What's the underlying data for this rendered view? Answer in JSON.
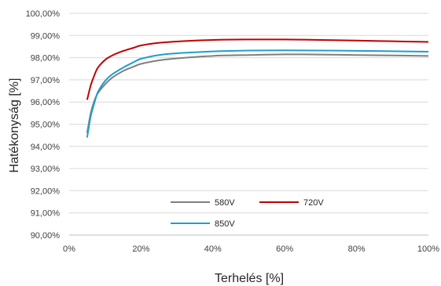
{
  "chart_data": {
    "type": "line",
    "title": "",
    "xlabel": "Terhelés [%]",
    "ylabel": "Hatékonyság [%]",
    "xlim": [
      0,
      100
    ],
    "ylim": [
      90,
      100
    ],
    "x_ticks": [
      "0%",
      "20%",
      "40%",
      "60%",
      "80%",
      "100%"
    ],
    "y_ticks": [
      "90,00%",
      "91,00%",
      "92,00%",
      "93,00%",
      "94,00%",
      "95,00%",
      "96,00%",
      "97,00%",
      "98,00%",
      "99,00%",
      "100,00%"
    ],
    "grid": "horizontal",
    "legend_position": "bottom-center",
    "series": [
      {
        "name": "580V",
        "color": "#7f7f7f",
        "points": [
          [
            5,
            94.6
          ],
          [
            6,
            95.5
          ],
          [
            7,
            96.05
          ],
          [
            8,
            96.4
          ],
          [
            10,
            96.8
          ],
          [
            12,
            97.1
          ],
          [
            15,
            97.4
          ],
          [
            18,
            97.6
          ],
          [
            20,
            97.72
          ],
          [
            25,
            97.88
          ],
          [
            30,
            97.97
          ],
          [
            40,
            98.08
          ],
          [
            50,
            98.12
          ],
          [
            60,
            98.15
          ],
          [
            70,
            98.14
          ],
          [
            80,
            98.12
          ],
          [
            90,
            98.1
          ],
          [
            100,
            98.08
          ]
        ]
      },
      {
        "name": "720V",
        "color": "#c00000",
        "points": [
          [
            5,
            96.1
          ],
          [
            6,
            96.75
          ],
          [
            7,
            97.2
          ],
          [
            8,
            97.55
          ],
          [
            10,
            97.9
          ],
          [
            12,
            98.1
          ],
          [
            15,
            98.3
          ],
          [
            18,
            98.45
          ],
          [
            20,
            98.55
          ],
          [
            25,
            98.67
          ],
          [
            30,
            98.73
          ],
          [
            40,
            98.8
          ],
          [
            50,
            98.82
          ],
          [
            60,
            98.82
          ],
          [
            70,
            98.8
          ],
          [
            80,
            98.77
          ],
          [
            90,
            98.74
          ],
          [
            100,
            98.71
          ]
        ]
      },
      {
        "name": "850V",
        "color": "#1f9ec9",
        "points": [
          [
            5,
            94.4
          ],
          [
            6,
            95.35
          ],
          [
            7,
            95.95
          ],
          [
            8,
            96.45
          ],
          [
            10,
            96.95
          ],
          [
            12,
            97.25
          ],
          [
            15,
            97.55
          ],
          [
            18,
            97.8
          ],
          [
            20,
            97.95
          ],
          [
            25,
            98.12
          ],
          [
            30,
            98.2
          ],
          [
            40,
            98.28
          ],
          [
            50,
            98.32
          ],
          [
            60,
            98.33
          ],
          [
            70,
            98.32
          ],
          [
            80,
            98.31
          ],
          [
            90,
            98.29
          ],
          [
            100,
            98.27
          ]
        ]
      }
    ]
  }
}
